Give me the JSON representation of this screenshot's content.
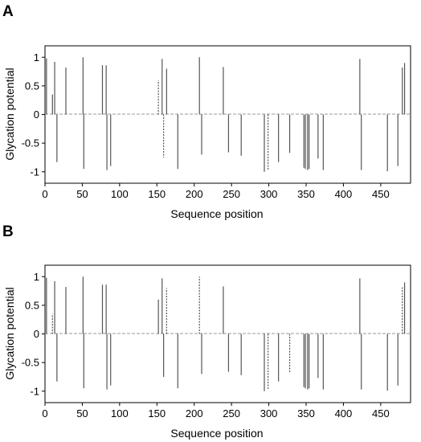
{
  "chart_data": [
    {
      "type": "bar",
      "panel_label": "A",
      "xlabel": "Sequence position",
      "ylabel": "Glycation potential",
      "xlim": [
        0,
        490
      ],
      "ylim": [
        -1.2,
        1.2
      ],
      "x_ticks": [
        0,
        50,
        100,
        150,
        200,
        250,
        300,
        350,
        400,
        450
      ],
      "y_ticks": [
        1,
        0.5,
        0,
        -0.5,
        -1
      ],
      "y_tick_labels": [
        "1",
        "0.5",
        "0",
        "-0.5",
        "-1"
      ],
      "grid": false,
      "series": [
        {
          "style": "solid",
          "points": [
            [
              2,
              0.98
            ],
            [
              10,
              0.35
            ],
            [
              13,
              0.92
            ],
            [
              16,
              -0.83
            ],
            [
              28,
              0.82
            ],
            [
              51,
              1.0
            ],
            [
              52,
              -0.95
            ],
            [
              77,
              0.86
            ],
            [
              82,
              0.86
            ],
            [
              83,
              -0.97
            ],
            [
              88,
              -0.9
            ],
            [
              157,
              0.97
            ],
            [
              163,
              0.8
            ],
            [
              178,
              -0.95
            ],
            [
              207,
              1.0
            ],
            [
              210,
              -0.7
            ],
            [
              239,
              0.83
            ],
            [
              246,
              -0.66
            ],
            [
              263,
              -0.72
            ],
            [
              294,
              -1.0
            ],
            [
              313,
              -0.83
            ],
            [
              328,
              -0.67
            ],
            [
              347,
              -0.93
            ],
            [
              349,
              -0.95
            ],
            [
              352,
              -0.97
            ],
            [
              354,
              -0.95
            ],
            [
              366,
              -0.77
            ],
            [
              373,
              -0.97
            ],
            [
              422,
              0.97
            ],
            [
              424,
              -0.97
            ],
            [
              459,
              -0.99
            ],
            [
              473,
              -0.9
            ],
            [
              479,
              0.82
            ],
            [
              482,
              0.9
            ]
          ]
        },
        {
          "style": "dotted",
          "points": [
            [
              152,
              0.6
            ],
            [
              159,
              -0.75
            ],
            [
              299,
              -0.96
            ]
          ]
        }
      ]
    },
    {
      "type": "bar",
      "panel_label": "B",
      "xlabel": "Sequence position",
      "ylabel": "Glycation potential",
      "xlim": [
        0,
        490
      ],
      "ylim": [
        -1.2,
        1.2
      ],
      "x_ticks": [
        0,
        50,
        100,
        150,
        200,
        250,
        300,
        350,
        400,
        450
      ],
      "y_ticks": [
        1,
        0.5,
        0,
        -0.5,
        -1
      ],
      "y_tick_labels": [
        "1",
        "0.5",
        "0",
        "-0.5",
        "-1"
      ],
      "grid": false,
      "series": [
        {
          "style": "solid",
          "points": [
            [
              2,
              0.98
            ],
            [
              13,
              0.92
            ],
            [
              16,
              -0.83
            ],
            [
              28,
              0.82
            ],
            [
              51,
              1.0
            ],
            [
              52,
              -0.95
            ],
            [
              77,
              0.86
            ],
            [
              82,
              0.86
            ],
            [
              83,
              -0.97
            ],
            [
              88,
              -0.9
            ],
            [
              152,
              0.6
            ],
            [
              157,
              0.97
            ],
            [
              159,
              -0.75
            ],
            [
              178,
              -0.95
            ],
            [
              210,
              -0.7
            ],
            [
              239,
              0.83
            ],
            [
              246,
              -0.66
            ],
            [
              263,
              -0.72
            ],
            [
              294,
              -1.0
            ],
            [
              313,
              -0.83
            ],
            [
              347,
              -0.93
            ],
            [
              349,
              -0.95
            ],
            [
              352,
              -0.97
            ],
            [
              354,
              -0.95
            ],
            [
              366,
              -0.77
            ],
            [
              373,
              -0.97
            ],
            [
              422,
              0.97
            ],
            [
              424,
              -0.97
            ],
            [
              459,
              -0.99
            ],
            [
              473,
              -0.9
            ],
            [
              482,
              0.9
            ]
          ]
        },
        {
          "style": "dotted",
          "points": [
            [
              10,
              0.35
            ],
            [
              163,
              0.8
            ],
            [
              207,
              1.0
            ],
            [
              299,
              -0.96
            ],
            [
              328,
              -0.67
            ],
            [
              479,
              0.82
            ]
          ]
        }
      ]
    }
  ]
}
